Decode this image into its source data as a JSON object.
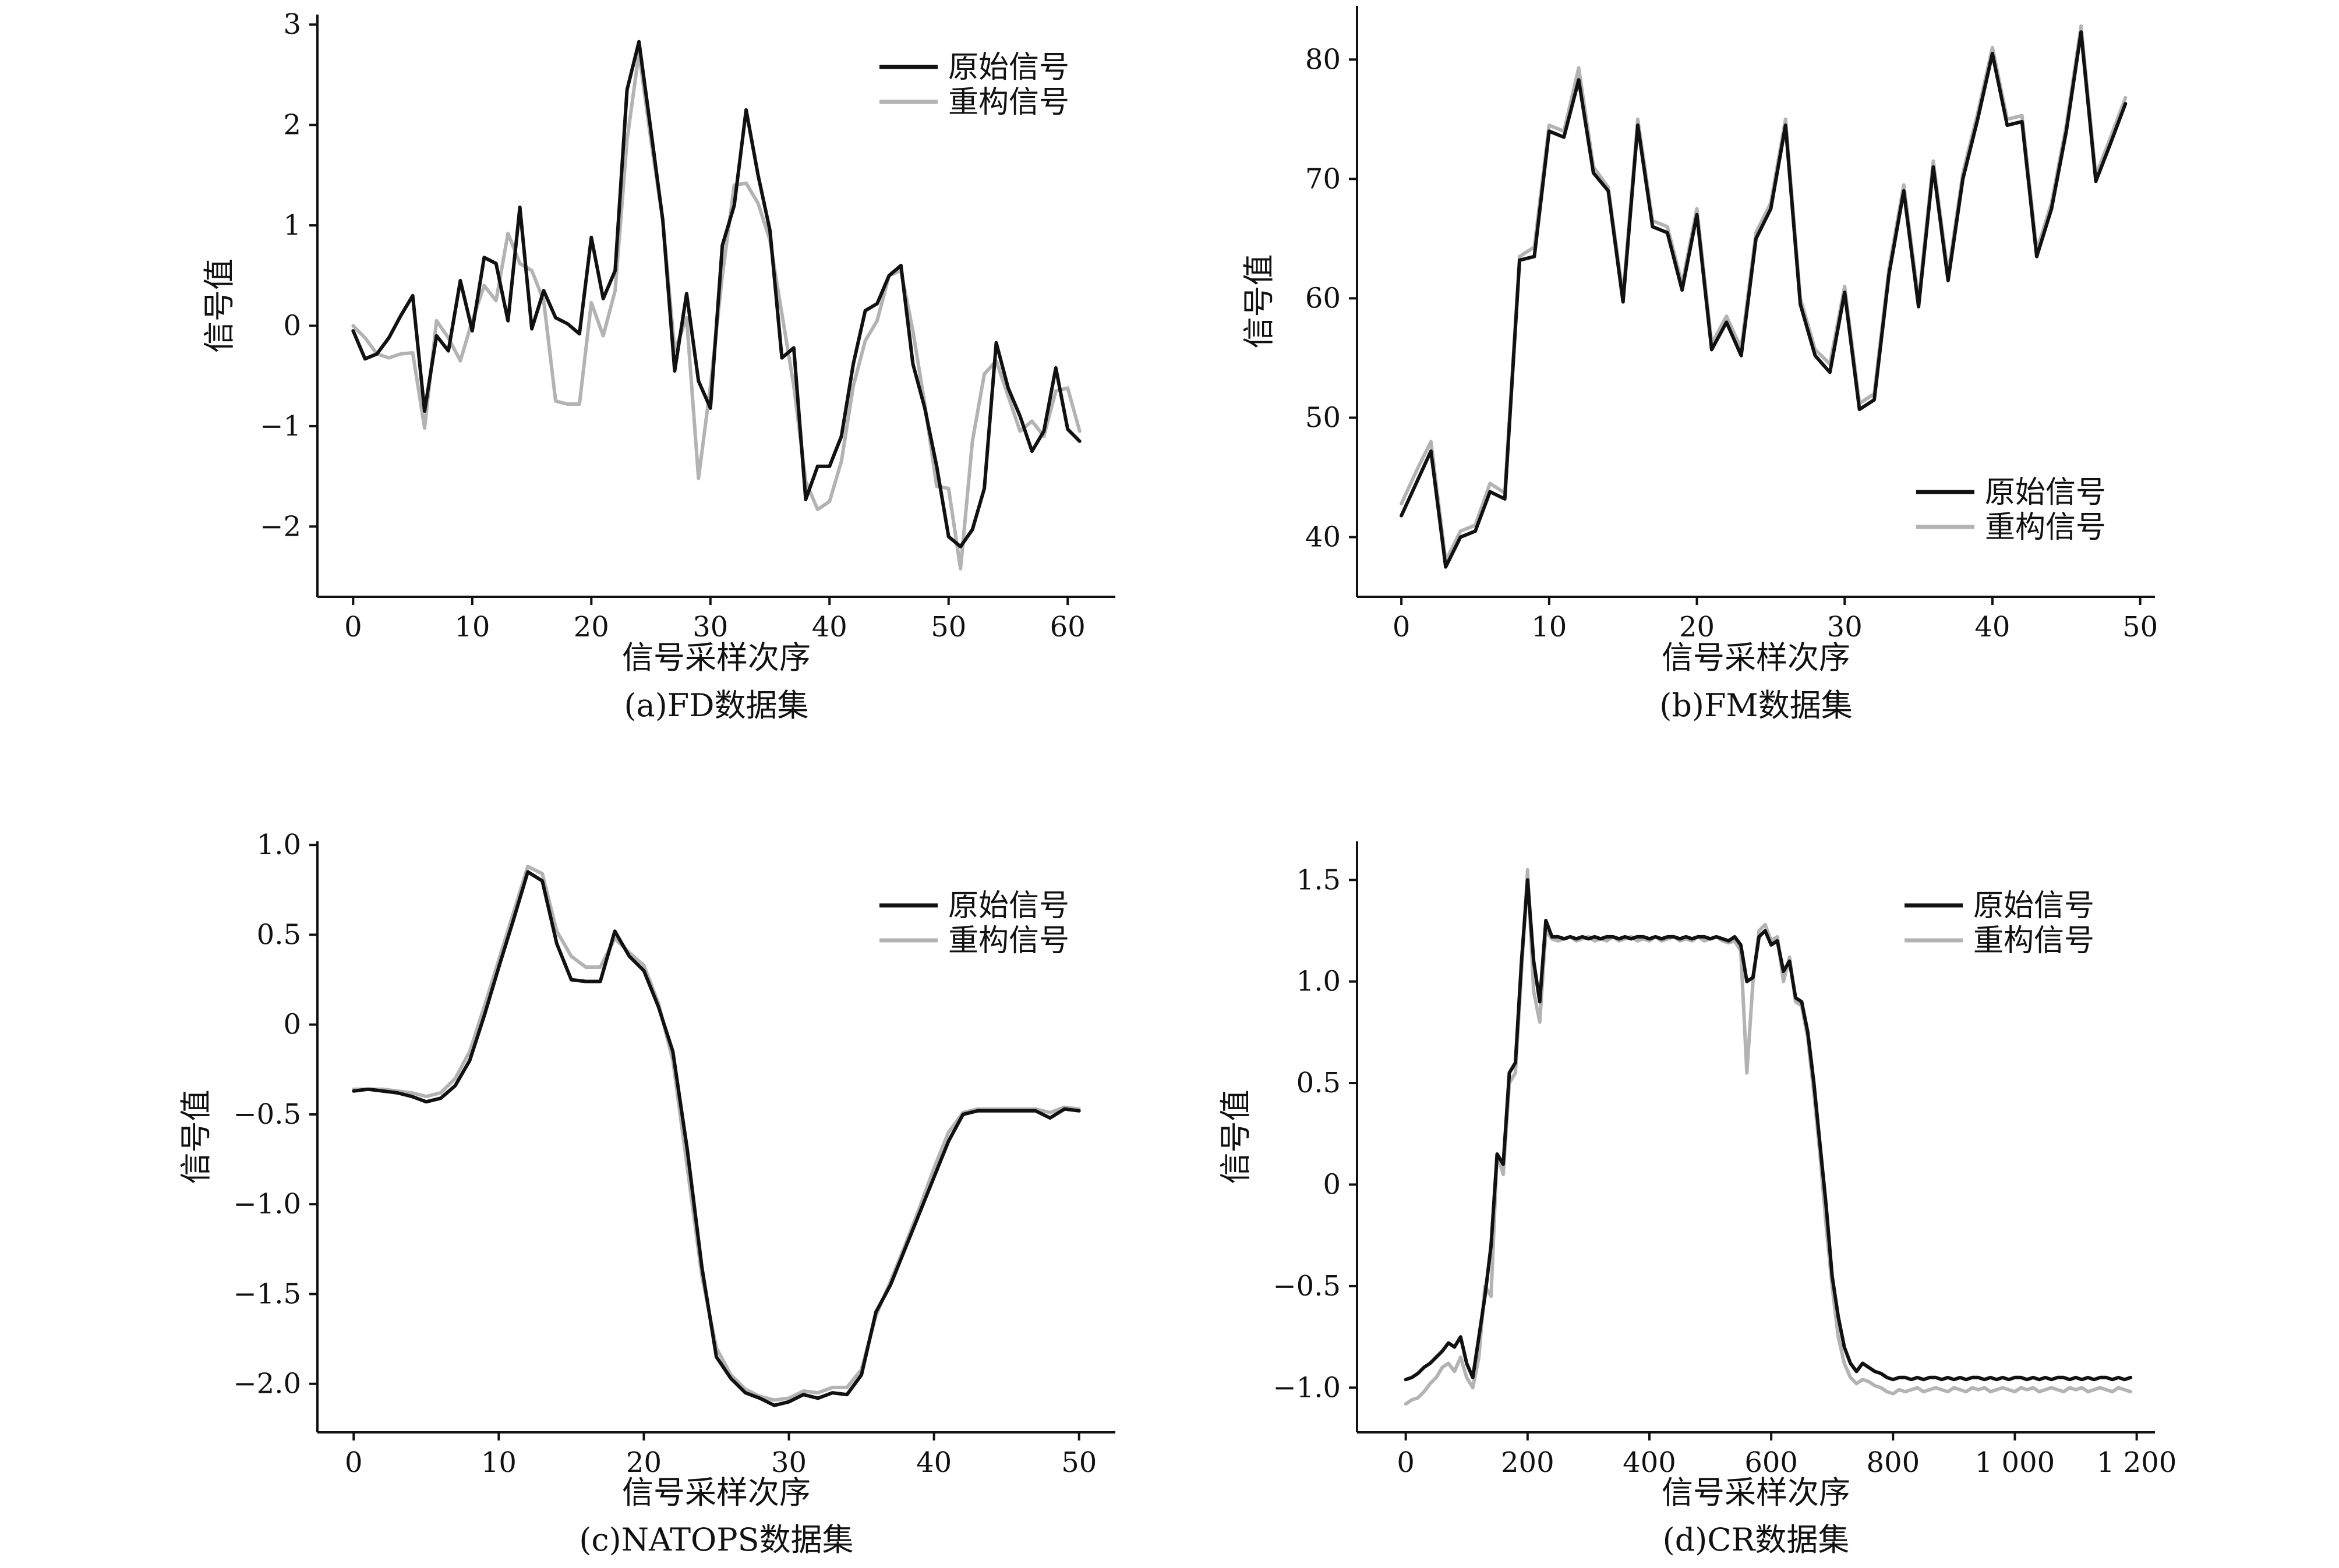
{
  "colors": {
    "original": "#111111",
    "reconstructed": "#b3b3b3"
  },
  "legend": {
    "original": "原始信号",
    "reconstructed": "重构信号"
  },
  "chart_data": [
    {
      "id": "a",
      "type": "line",
      "caption": "(a)FD数据集",
      "xlabel": "信号采样次序",
      "ylabel": "信号值",
      "xlim": [
        -3,
        64
      ],
      "ylim": [
        -2.7,
        3.1
      ],
      "xticks": [
        {
          "v": 0,
          "label": "0"
        },
        {
          "v": 10,
          "label": "10"
        },
        {
          "v": 20,
          "label": "20"
        },
        {
          "v": 30,
          "label": "30"
        },
        {
          "v": 40,
          "label": "40"
        },
        {
          "v": 50,
          "label": "50"
        },
        {
          "v": 60,
          "label": "60"
        }
      ],
      "yticks": [
        {
          "v": -2,
          "label": "−2"
        },
        {
          "v": -1,
          "label": "−1"
        },
        {
          "v": 0,
          "label": "0"
        },
        {
          "v": 1,
          "label": "1"
        },
        {
          "v": 2,
          "label": "2"
        },
        {
          "v": 3,
          "label": "3"
        }
      ],
      "legend_position": "top-right",
      "series": [
        {
          "key": "original",
          "name": "原始信号",
          "x_start": 0,
          "x_step": 1,
          "values": [
            -0.05,
            -0.33,
            -0.28,
            -0.12,
            0.1,
            0.3,
            -0.85,
            -0.1,
            -0.25,
            0.45,
            -0.05,
            0.68,
            0.62,
            0.05,
            1.18,
            -0.03,
            0.35,
            0.08,
            0.02,
            -0.08,
            0.88,
            0.27,
            0.55,
            2.35,
            2.83,
            1.95,
            1.05,
            -0.45,
            0.32,
            -0.55,
            -0.82,
            0.8,
            1.2,
            2.15,
            1.5,
            0.95,
            -0.32,
            -0.22,
            -1.73,
            -1.4,
            -1.4,
            -1.1,
            -0.38,
            0.15,
            0.22,
            0.5,
            0.6,
            -0.38,
            -0.82,
            -1.4,
            -2.1,
            -2.2,
            -2.03,
            -1.62,
            -0.17,
            -0.62,
            -0.9,
            -1.25,
            -1.05,
            -0.42,
            -1.03,
            -1.15
          ]
        },
        {
          "key": "reconstructed",
          "name": "重构信号",
          "x_start": 0,
          "x_step": 1,
          "values": [
            0.0,
            -0.12,
            -0.28,
            -0.32,
            -0.28,
            -0.27,
            -1.02,
            0.05,
            -0.12,
            -0.35,
            0.05,
            0.4,
            0.25,
            0.92,
            0.62,
            0.55,
            0.25,
            -0.75,
            -0.78,
            -0.78,
            0.23,
            -0.1,
            0.35,
            1.85,
            2.72,
            1.85,
            1.05,
            -0.25,
            0.08,
            -1.52,
            -0.6,
            0.5,
            1.4,
            1.42,
            1.22,
            0.85,
            0.12,
            -0.6,
            -1.55,
            -1.83,
            -1.75,
            -1.35,
            -0.6,
            -0.15,
            0.05,
            0.5,
            0.55,
            -0.05,
            -0.78,
            -1.6,
            -1.62,
            -2.42,
            -1.15,
            -0.48,
            -0.35,
            -0.7,
            -1.05,
            -0.95,
            -1.1,
            -0.65,
            -0.62,
            -1.05
          ]
        }
      ]
    },
    {
      "id": "b",
      "type": "line",
      "caption": "(b)FM数据集",
      "xlabel": "信号采样次序",
      "ylabel": "信号值",
      "xlim": [
        -3,
        51
      ],
      "ylim": [
        35,
        84.5
      ],
      "xticks": [
        {
          "v": 0,
          "label": "0"
        },
        {
          "v": 10,
          "label": "10"
        },
        {
          "v": 20,
          "label": "20"
        },
        {
          "v": 30,
          "label": "30"
        },
        {
          "v": 40,
          "label": "40"
        },
        {
          "v": 50,
          "label": "50"
        }
      ],
      "yticks": [
        {
          "v": 40,
          "label": "40"
        },
        {
          "v": 50,
          "label": "50"
        },
        {
          "v": 60,
          "label": "60"
        },
        {
          "v": 70,
          "label": "70"
        },
        {
          "v": 80,
          "label": "80"
        }
      ],
      "legend_position": "bottom-right",
      "series": [
        {
          "key": "original",
          "name": "原始信号",
          "x_start": 0,
          "x_step": 1,
          "values": [
            41.8,
            44.5,
            47.2,
            37.5,
            40.0,
            40.5,
            43.8,
            43.2,
            63.2,
            63.5,
            74.0,
            73.5,
            78.3,
            70.5,
            69.0,
            59.7,
            74.5,
            66.0,
            65.5,
            60.7,
            67.0,
            55.7,
            58.0,
            55.2,
            65.0,
            67.5,
            74.5,
            59.5,
            55.2,
            53.8,
            60.5,
            50.7,
            51.5,
            62.0,
            69.0,
            59.3,
            71.0,
            61.5,
            70.0,
            75.0,
            80.5,
            74.5,
            74.8,
            63.5,
            67.5,
            74.0,
            82.3,
            69.8,
            73.0,
            76.3
          ]
        },
        {
          "key": "reconstructed",
          "name": "重构信号",
          "x_start": 0,
          "x_step": 1,
          "values": [
            42.8,
            45.5,
            48.0,
            38.0,
            40.5,
            41.0,
            44.5,
            43.7,
            63.5,
            64.3,
            74.5,
            74.0,
            79.3,
            71.0,
            69.3,
            60.2,
            75.0,
            66.5,
            66.0,
            61.2,
            67.5,
            56.2,
            58.5,
            55.8,
            65.5,
            68.0,
            75.0,
            60.0,
            55.7,
            54.5,
            61.0,
            51.2,
            52.0,
            62.5,
            69.5,
            59.8,
            71.5,
            62.0,
            70.5,
            75.5,
            81.0,
            75.0,
            75.3,
            64.0,
            68.0,
            74.5,
            82.8,
            70.3,
            73.5,
            76.8
          ]
        }
      ]
    },
    {
      "id": "c",
      "type": "line",
      "caption": "(c)NATOPS数据集",
      "xlabel": "信号采样次序",
      "ylabel": "信号值",
      "xlim": [
        -2.5,
        52.5
      ],
      "ylim": [
        -2.27,
        1.02
      ],
      "xticks": [
        {
          "v": 0,
          "label": "0"
        },
        {
          "v": 10,
          "label": "10"
        },
        {
          "v": 20,
          "label": "20"
        },
        {
          "v": 30,
          "label": "30"
        },
        {
          "v": 40,
          "label": "40"
        },
        {
          "v": 50,
          "label": "50"
        }
      ],
      "yticks": [
        {
          "v": -2.0,
          "label": "−2.0"
        },
        {
          "v": -1.5,
          "label": "−1.5"
        },
        {
          "v": -1.0,
          "label": "−1.0"
        },
        {
          "v": -0.5,
          "label": "−0.5"
        },
        {
          "v": 0,
          "label": "0"
        },
        {
          "v": 0.5,
          "label": "0.5"
        },
        {
          "v": 1.0,
          "label": "1.0"
        }
      ],
      "legend_position": "top-right",
      "series": [
        {
          "key": "original",
          "name": "原始信号",
          "x_start": 0,
          "x_step": 1,
          "values": [
            -0.37,
            -0.36,
            -0.37,
            -0.38,
            -0.4,
            -0.43,
            -0.41,
            -0.34,
            -0.2,
            0.05,
            0.32,
            0.58,
            0.85,
            0.8,
            0.45,
            0.25,
            0.24,
            0.24,
            0.52,
            0.38,
            0.3,
            0.1,
            -0.15,
            -0.7,
            -1.35,
            -1.85,
            -1.97,
            -2.05,
            -2.08,
            -2.12,
            -2.1,
            -2.06,
            -2.08,
            -2.05,
            -2.06,
            -1.95,
            -1.6,
            -1.45,
            -1.25,
            -1.05,
            -0.85,
            -0.65,
            -0.5,
            -0.48,
            -0.48,
            -0.48,
            -0.48,
            -0.48,
            -0.52,
            -0.47,
            -0.48
          ]
        },
        {
          "key": "reconstructed",
          "name": "重构信号",
          "x_start": 0,
          "x_step": 1,
          "values": [
            -0.36,
            -0.36,
            -0.36,
            -0.37,
            -0.38,
            -0.4,
            -0.38,
            -0.3,
            -0.15,
            0.1,
            0.36,
            0.62,
            0.88,
            0.84,
            0.52,
            0.38,
            0.32,
            0.32,
            0.48,
            0.4,
            0.33,
            0.12,
            -0.2,
            -0.8,
            -1.4,
            -1.8,
            -1.95,
            -2.03,
            -2.07,
            -2.09,
            -2.08,
            -2.04,
            -2.05,
            -2.02,
            -2.02,
            -1.92,
            -1.62,
            -1.43,
            -1.23,
            -1.02,
            -0.8,
            -0.6,
            -0.49,
            -0.47,
            -0.47,
            -0.47,
            -0.47,
            -0.47,
            -0.49,
            -0.46,
            -0.47
          ]
        }
      ]
    },
    {
      "id": "d",
      "type": "line",
      "caption": "(d)CR数据集",
      "xlabel": "信号采样次序",
      "ylabel": "信号值",
      "xlim": [
        -80,
        1230
      ],
      "ylim": [
        -1.22,
        1.69
      ],
      "xticks": [
        {
          "v": 0,
          "label": "0"
        },
        {
          "v": 200,
          "label": "200"
        },
        {
          "v": 400,
          "label": "400"
        },
        {
          "v": 600,
          "label": "600"
        },
        {
          "v": 800,
          "label": "800"
        },
        {
          "v": 1000,
          "label": "1 000"
        },
        {
          "v": 1200,
          "label": "1 200"
        }
      ],
      "yticks": [
        {
          "v": -1.0,
          "label": "−1.0"
        },
        {
          "v": -0.5,
          "label": "−0.5"
        },
        {
          "v": 0,
          "label": "0"
        },
        {
          "v": 0.5,
          "label": "0.5"
        },
        {
          "v": 1.0,
          "label": "1.0"
        },
        {
          "v": 1.5,
          "label": "1.5"
        }
      ],
      "legend_position": "top-right",
      "series": [
        {
          "key": "original",
          "name": "原始信号",
          "x_start": 0,
          "x_step": 10,
          "values": [
            -0.96,
            -0.95,
            -0.93,
            -0.9,
            -0.88,
            -0.85,
            -0.82,
            -0.78,
            -0.8,
            -0.75,
            -0.88,
            -0.95,
            -0.75,
            -0.55,
            -0.3,
            0.15,
            0.1,
            0.55,
            0.6,
            1.1,
            1.5,
            1.1,
            0.9,
            1.3,
            1.22,
            1.22,
            1.21,
            1.22,
            1.21,
            1.22,
            1.21,
            1.22,
            1.21,
            1.22,
            1.22,
            1.21,
            1.22,
            1.21,
            1.22,
            1.22,
            1.21,
            1.22,
            1.21,
            1.22,
            1.22,
            1.21,
            1.22,
            1.21,
            1.22,
            1.22,
            1.21,
            1.22,
            1.21,
            1.2,
            1.22,
            1.18,
            1.0,
            1.02,
            1.22,
            1.25,
            1.18,
            1.2,
            1.05,
            1.1,
            0.92,
            0.9,
            0.75,
            0.5,
            0.2,
            -0.1,
            -0.45,
            -0.65,
            -0.8,
            -0.88,
            -0.92,
            -0.88,
            -0.9,
            -0.92,
            -0.93,
            -0.95,
            -0.96,
            -0.95,
            -0.95,
            -0.96,
            -0.95,
            -0.96,
            -0.95,
            -0.95,
            -0.96,
            -0.95,
            -0.96,
            -0.95,
            -0.96,
            -0.95,
            -0.95,
            -0.96,
            -0.95,
            -0.96,
            -0.95,
            -0.96,
            -0.95,
            -0.95,
            -0.96,
            -0.95,
            -0.96,
            -0.95,
            -0.96,
            -0.95,
            -0.95,
            -0.96,
            -0.95,
            -0.96,
            -0.95,
            -0.96,
            -0.95,
            -0.95,
            -0.96,
            -0.95,
            -0.96,
            -0.95
          ]
        },
        {
          "key": "reconstructed",
          "name": "重构信号",
          "x_start": 0,
          "x_step": 10,
          "values": [
            -1.08,
            -1.06,
            -1.05,
            -1.02,
            -0.98,
            -0.95,
            -0.9,
            -0.88,
            -0.92,
            -0.85,
            -0.95,
            -1.0,
            -0.85,
            -0.5,
            -0.55,
            0.15,
            0.05,
            0.5,
            0.55,
            1.05,
            1.55,
            0.95,
            0.8,
            1.25,
            1.21,
            1.2,
            1.21,
            1.22,
            1.2,
            1.21,
            1.22,
            1.2,
            1.21,
            1.2,
            1.22,
            1.2,
            1.21,
            1.22,
            1.2,
            1.21,
            1.2,
            1.22,
            1.2,
            1.21,
            1.22,
            1.2,
            1.21,
            1.2,
            1.22,
            1.2,
            1.21,
            1.22,
            1.2,
            1.19,
            1.2,
            1.15,
            0.55,
            1.0,
            1.25,
            1.28,
            1.2,
            1.22,
            1.0,
            1.12,
            0.9,
            0.88,
            0.72,
            0.45,
            0.15,
            -0.2,
            -0.5,
            -0.75,
            -0.88,
            -0.95,
            -0.98,
            -0.96,
            -0.97,
            -0.99,
            -1.0,
            -1.02,
            -1.03,
            -1.01,
            -1.02,
            -1.01,
            -1.0,
            -1.02,
            -1.01,
            -1.0,
            -1.01,
            -1.02,
            -1.0,
            -1.01,
            -1.02,
            -1.0,
            -1.01,
            -1.0,
            -1.02,
            -1.01,
            -1.0,
            -1.01,
            -1.02,
            -1.0,
            -1.01,
            -1.0,
            -1.02,
            -1.01,
            -1.0,
            -1.01,
            -1.02,
            -1.0,
            -1.01,
            -1.0,
            -1.02,
            -1.01,
            -1.0,
            -1.01,
            -1.02,
            -1.0,
            -1.01,
            -1.02
          ]
        }
      ]
    }
  ]
}
